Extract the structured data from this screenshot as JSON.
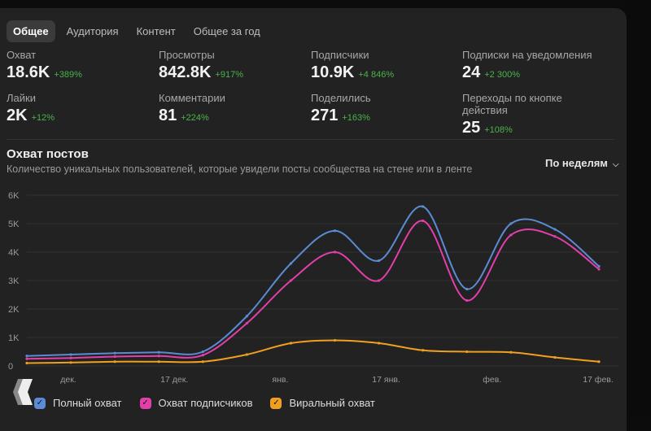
{
  "tabs": [
    {
      "label": "Общее",
      "active": true
    },
    {
      "label": "Аудитория",
      "active": false
    },
    {
      "label": "Контент",
      "active": false
    },
    {
      "label": "Общее за год",
      "active": false
    }
  ],
  "stats": [
    {
      "label": "Охват",
      "value": "18.6K",
      "delta": "+389%"
    },
    {
      "label": "Просмотры",
      "value": "842.8K",
      "delta": "+917%"
    },
    {
      "label": "Подписчики",
      "value": "10.9K",
      "delta": "+4 846%"
    },
    {
      "label": "Подписки на уведомления",
      "value": "24",
      "delta": "+2 300%"
    },
    {
      "label": "Лайки",
      "value": "2K",
      "delta": "+12%"
    },
    {
      "label": "Комментарии",
      "value": "81",
      "delta": "+224%"
    },
    {
      "label": "Поделились",
      "value": "271",
      "delta": "+163%"
    },
    {
      "label": "Переходы по кнопке действия",
      "value": "25",
      "delta": "+108%"
    }
  ],
  "section": {
    "title": "Охват постов",
    "subtitle": "Количество уникальных пользователей, которые увидели посты сообщества на стене или в ленте",
    "period_label": "По неделям"
  },
  "colors": {
    "positive": "#4bb34b",
    "series_full": "#5b8bd4",
    "series_subs": "#e33fa9",
    "series_viral": "#f0a020"
  },
  "chart_data": {
    "type": "line",
    "title": "Охват постов",
    "xlabel": "",
    "ylabel": "",
    "ylim": [
      0,
      6000
    ],
    "y_ticks": [
      "0",
      "1K",
      "2K",
      "3K",
      "4K",
      "5K",
      "6K"
    ],
    "x_tick_labels": [
      "дек.",
      "17 дек.",
      "янв.",
      "17 янв.",
      "фев.",
      "17 фев."
    ],
    "grid": true,
    "legend_position": "bottom-left",
    "series": [
      {
        "name": "Полный охват",
        "values": [
          350,
          400,
          450,
          480,
          500,
          1750,
          3600,
          4750,
          3700,
          5600,
          2700,
          5000,
          4800,
          3500
        ]
      },
      {
        "name": "Охват подписчиков",
        "values": [
          250,
          280,
          330,
          350,
          380,
          1500,
          3000,
          4000,
          3000,
          5100,
          2300,
          4600,
          4550,
          3400
        ]
      },
      {
        "name": "Виральный охват",
        "values": [
          100,
          120,
          150,
          150,
          150,
          400,
          800,
          900,
          800,
          550,
          500,
          480,
          300,
          150
        ]
      }
    ]
  }
}
